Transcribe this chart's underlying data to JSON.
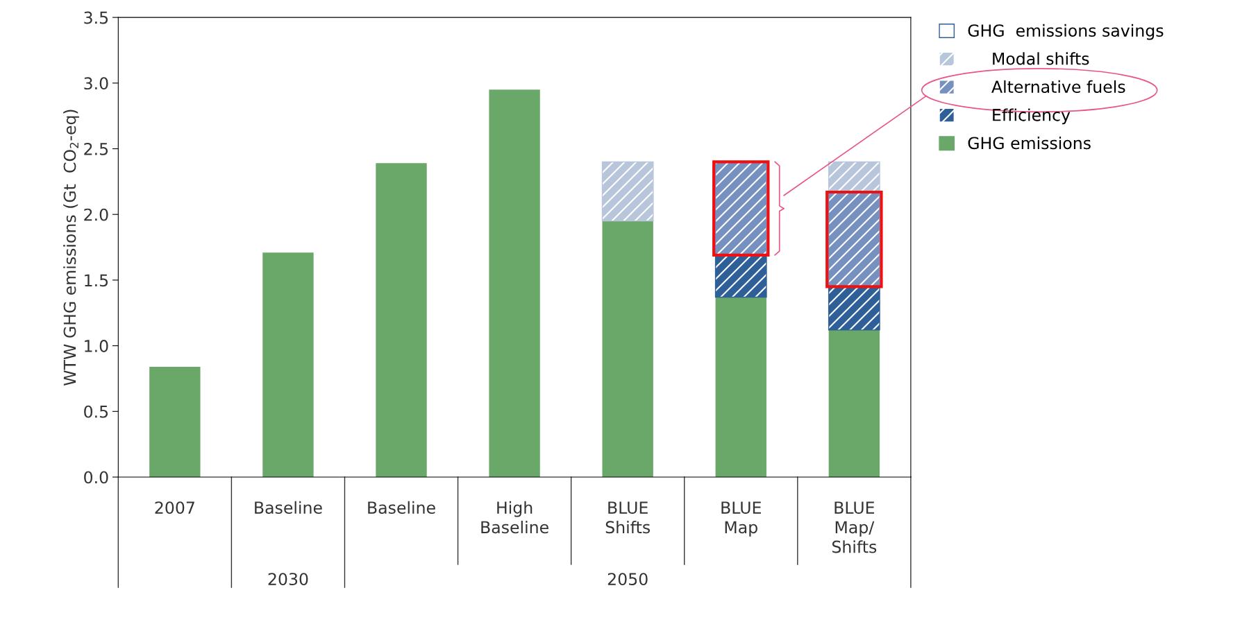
{
  "chart_data": {
    "type": "bar",
    "stacked": true,
    "ylabel": "WTW GHG emissions (Gt  CO$_{2}$-eq)",
    "categories": [
      "2007",
      "Baseline",
      "Baseline",
      "High\nBaseline",
      "BLUE\nShifts",
      "BLUE\nMap",
      "BLUE\nMap/\nShifts"
    ],
    "series": [
      {
        "name": "GHG emissions",
        "color": "#6aa86a",
        "values": [
          0.84,
          1.71,
          2.39,
          2.95,
          1.95,
          1.37,
          1.12
        ]
      },
      {
        "name": "Efficiency",
        "color": "#2e5f98",
        "values": [
          null,
          null,
          null,
          null,
          null,
          0.32,
          0.33
        ]
      },
      {
        "name": "Alternative fuels",
        "color": "#7690bf",
        "values": [
          null,
          null,
          null,
          null,
          null,
          0.71,
          0.72
        ]
      },
      {
        "name": "Modal shifts",
        "color": "#b8c6dc",
        "values": [
          null,
          null,
          null,
          null,
          0.45,
          null,
          0.23
        ]
      }
    ],
    "legend_title": "GHG  emissions savings",
    "legend": "top right",
    "ylim": [
      0,
      3.5
    ],
    "yticks": [
      {
        "value": 0,
        "label": "0.0"
      },
      {
        "value": 0.5,
        "label": "0.5"
      },
      {
        "value": 1,
        "label": "1.0"
      },
      {
        "value": 1.5,
        "label": "1.5"
      },
      {
        "value": 2,
        "label": "2.0"
      },
      {
        "value": 2.5,
        "label": "2.5"
      },
      {
        "value": 3,
        "label": "3.0"
      },
      {
        "value": 3.5,
        "label": "3.5"
      }
    ],
    "annotations": [
      "2030",
      "2050"
    ],
    "grid": false
  }
}
